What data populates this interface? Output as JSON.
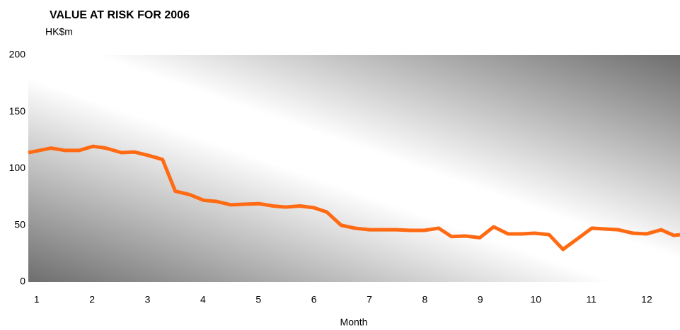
{
  "chart_data": {
    "type": "line",
    "title": "VALUE AT RISK FOR 2006",
    "y_label": "HK$m",
    "x_label": "Month",
    "x": [
      0.85,
      1.26,
      1.51,
      1.77,
      2.02,
      2.25,
      2.53,
      2.76,
      3.02,
      3.27,
      3.5,
      3.76,
      4.01,
      4.24,
      4.5,
      4.75,
      5.01,
      5.26,
      5.49,
      5.75,
      6.0,
      6.23,
      6.49,
      6.74,
      7.0,
      7.25,
      7.48,
      7.74,
      7.99,
      8.25,
      8.48,
      8.73,
      8.99,
      9.24,
      9.5,
      9.75,
      9.98,
      10.24,
      10.49,
      10.75,
      11.01,
      11.23,
      11.49,
      11.75,
      12.0,
      12.26,
      12.49,
      12.6
    ],
    "series": [
      {
        "name": "Value at risk",
        "color": "#ff6a13",
        "values": [
          114,
          118,
          116,
          116,
          119.6,
          118,
          114,
          114.6,
          111.5,
          108,
          80,
          77,
          72,
          71,
          68,
          68.5,
          69,
          67,
          66,
          67,
          65.4,
          61.7,
          50,
          47.4,
          46,
          46,
          46,
          45.5,
          45.5,
          47.4,
          40,
          40.5,
          39,
          48.6,
          42.4,
          42.4,
          43,
          41.7,
          28.7,
          38,
          47.4,
          46.7,
          46,
          43,
          42.4,
          46,
          41,
          41.7
        ]
      }
    ],
    "xlim": [
      0.85,
      12.6
    ],
    "xticks": [
      1,
      2,
      3,
      4,
      5,
      6,
      7,
      8,
      9,
      10,
      11,
      12
    ],
    "ylim": [
      0,
      200
    ],
    "yticks": [
      0,
      50,
      100,
      150,
      200
    ],
    "grid": false
  }
}
